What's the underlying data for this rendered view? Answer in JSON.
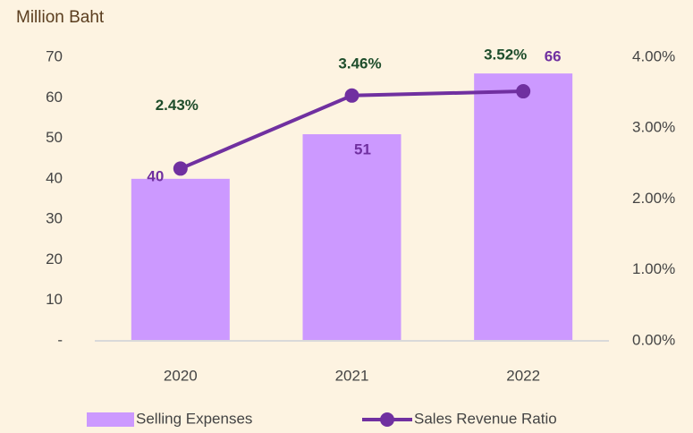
{
  "chart_data": {
    "type": "bar_line",
    "title": "Million Baht",
    "categories": [
      "2020",
      "2021",
      "2022"
    ],
    "series": [
      {
        "name": "Selling Expenses",
        "type": "bar",
        "color": "#cc99ff",
        "values": [
          40,
          51,
          66
        ]
      },
      {
        "name": "Sales Revenue Ratio",
        "type": "line",
        "axis": "y2",
        "color": "#7030a0",
        "values": [
          2.43,
          3.46,
          3.52
        ],
        "value_labels": [
          "2.43%",
          "3.46%",
          "3.52%"
        ]
      }
    ],
    "ylim": [
      0,
      70
    ],
    "yticks": [
      {
        "value": 0,
        "label": "-"
      },
      10,
      20,
      30,
      40,
      50,
      60,
      70
    ],
    "y2lim": [
      0,
      4
    ],
    "y2ticks": [
      {
        "value": 0,
        "label": "0.00%"
      },
      {
        "value": 1,
        "label": "1.00%"
      },
      {
        "value": 2,
        "label": "2.00%"
      },
      {
        "value": 3,
        "label": "3.00%"
      },
      {
        "value": 4,
        "label": "4.00%"
      }
    ],
    "legend": "bottom"
  }
}
